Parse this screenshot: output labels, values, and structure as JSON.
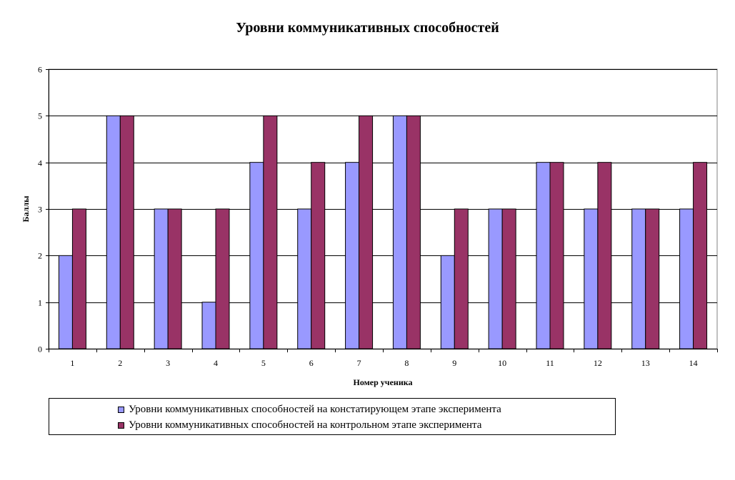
{
  "chart_data": {
    "type": "bar",
    "title": "Уровни коммуникативных способностей",
    "xlabel": "Номер ученика",
    "ylabel": "Баллы",
    "ylim": [
      0,
      6
    ],
    "yticks": [
      "0",
      "1",
      "2",
      "3",
      "4",
      "5",
      "6"
    ],
    "categories": [
      "1",
      "2",
      "3",
      "4",
      "5",
      "6",
      "7",
      "8",
      "9",
      "10",
      "11",
      "12",
      "13",
      "14"
    ],
    "series": [
      {
        "name": "Уровни коммуникативных способностей на констатирующем этапе эксперимента",
        "color": "#9999ff",
        "values": [
          2,
          5,
          3,
          1,
          4,
          3,
          4,
          5,
          2,
          3,
          4,
          3,
          3,
          3
        ]
      },
      {
        "name": "Уровни коммуникативных способностей на контрольном этапе эксперимента",
        "color": "#993366",
        "values": [
          3,
          5,
          3,
          3,
          5,
          4,
          5,
          5,
          3,
          3,
          4,
          4,
          3,
          4
        ]
      }
    ],
    "grid": true,
    "legend_position": "bottom"
  }
}
